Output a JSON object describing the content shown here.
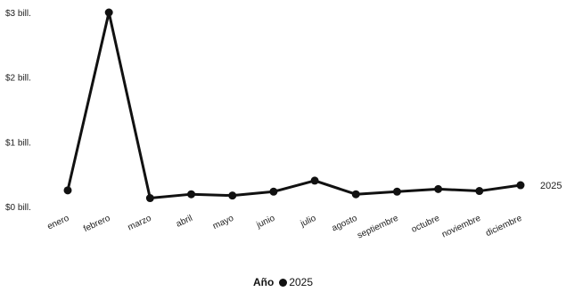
{
  "chart_data": {
    "type": "line",
    "categories": [
      "enero",
      "febrero",
      "marzo",
      "abril",
      "mayo",
      "junio",
      "julio",
      "agosto",
      "septiembre",
      "octubre",
      "noviembre",
      "diciembre"
    ],
    "series": [
      {
        "name": "2025",
        "values": [
          0.25,
          3.0,
          0.13,
          0.19,
          0.17,
          0.23,
          0.4,
          0.19,
          0.23,
          0.27,
          0.24,
          0.33
        ]
      }
    ],
    "y_ticks": [
      {
        "value": 0,
        "label": "$0 bill."
      },
      {
        "value": 1,
        "label": "$1 bill."
      },
      {
        "value": 2,
        "label": "$2 bill."
      },
      {
        "value": 3,
        "label": "$3 bill."
      }
    ],
    "ylim": [
      0,
      3
    ],
    "grid": false,
    "line_color": "#111111",
    "legend": {
      "title": "Año",
      "position": "bottom",
      "entries": [
        "2025"
      ]
    },
    "end_label": "2025"
  }
}
